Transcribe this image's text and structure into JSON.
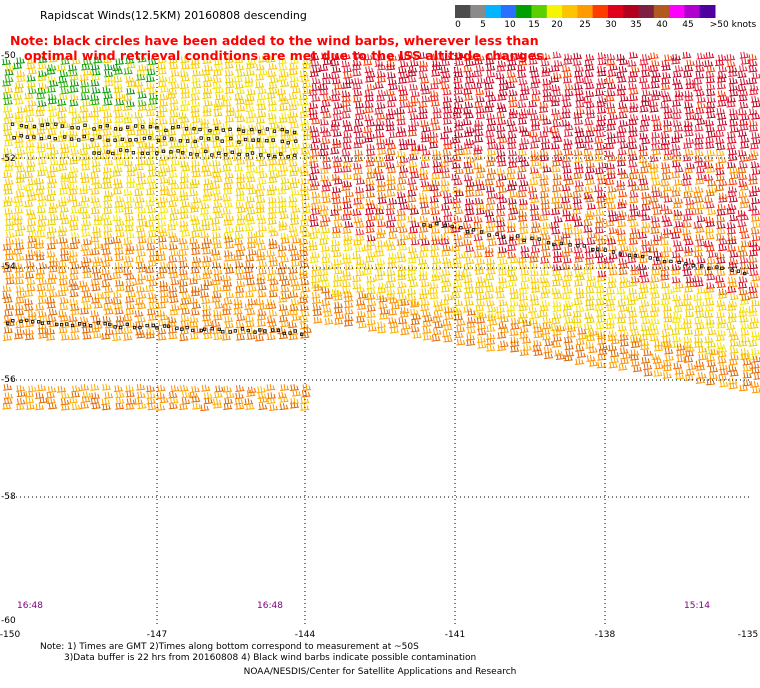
{
  "title": "Rapidscat Winds(12.5KM) 20160808 descending",
  "note": {
    "line1": "Note: black circles have been added to the wind barbs, wherever less than",
    "line2": "optimal wind retrieval conditions are met due to the ISS altitude changes."
  },
  "legend": {
    "labels": [
      "0",
      "5",
      "10",
      "15",
      "20",
      "25",
      "30",
      "35",
      "40",
      "45",
      ">50 knots"
    ],
    "colors": [
      "#4c4c4c",
      "#8a8a8a",
      "#00b4ff",
      "#2a6fff",
      "#00a000",
      "#5ad000",
      "#f5f500",
      "#ffc400",
      "#ff9a00",
      "#ff3c00",
      "#e0001c",
      "#b4001c",
      "#802040",
      "#b05a20",
      "#ff00ff",
      "#b000d0",
      "#5000a0"
    ]
  },
  "map": {
    "lat_labels": [
      "-50",
      "-52",
      "-54",
      "-56",
      "-58",
      "-60"
    ],
    "lon_labels": [
      "-150",
      "-147",
      "-144",
      "-141",
      "-138",
      "-135"
    ],
    "time_labels": [
      "16:48",
      "16:48",
      "15:14"
    ]
  },
  "footnote": {
    "line1": "Note: 1) Times are GMT 2)Times along bottom correspond to measurement at ~50S",
    "line2": "3)Data buffer is 22 hrs from 20160808 4) Black wind barbs indicate possible contamination"
  },
  "credit": "NOAA/NESDIS/Center for Satellite Applications and Research"
}
